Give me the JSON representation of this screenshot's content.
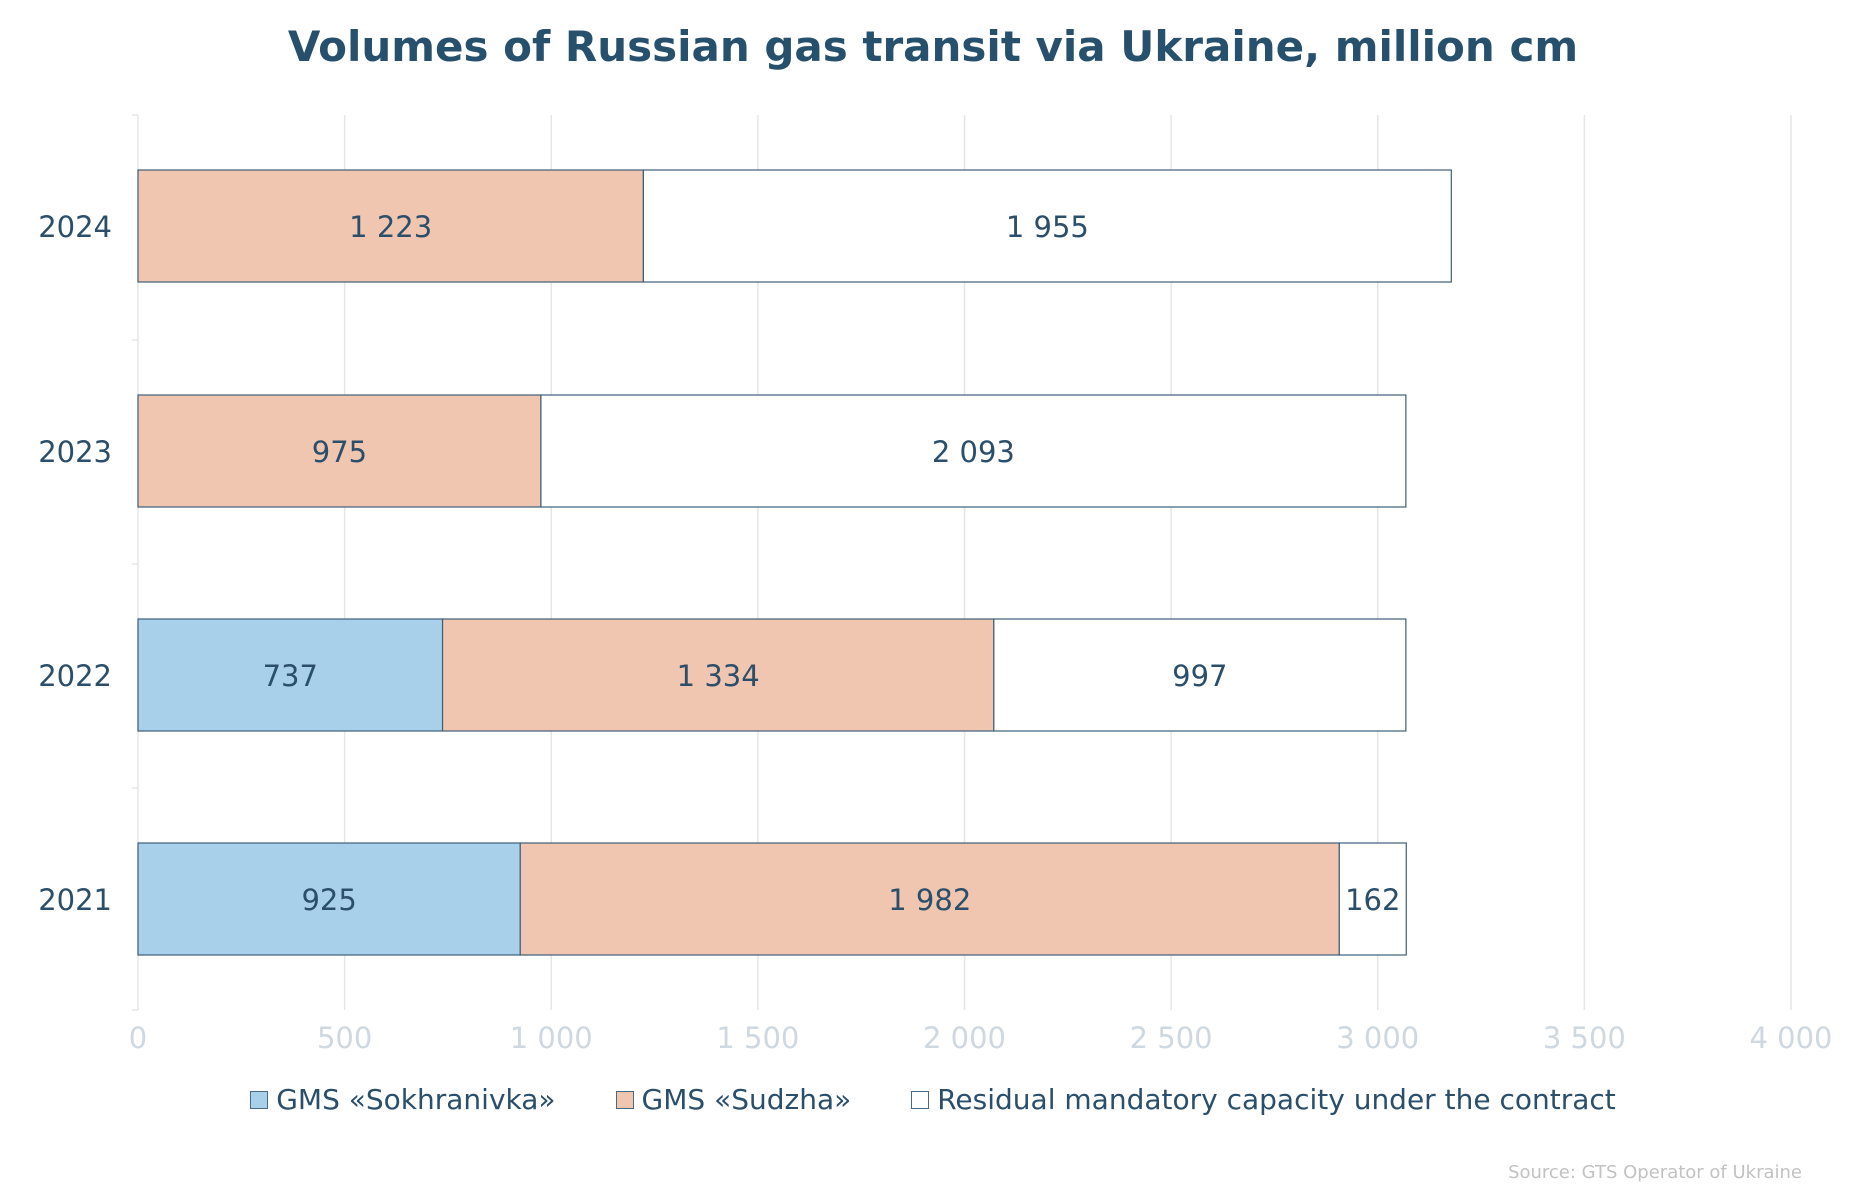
{
  "chart_data": {
    "type": "bar",
    "orientation": "horizontal",
    "stacked": true,
    "title": "Volumes of Russian gas transit via Ukraine, million cm",
    "categories": [
      "2024",
      "2023",
      "2022",
      "2021"
    ],
    "series": [
      {
        "name": "GMS «Sokhranivka»",
        "color": "#a9d0ea",
        "values": [
          0,
          0,
          737,
          925
        ],
        "labels": [
          "",
          "",
          "737",
          "925"
        ]
      },
      {
        "name": "GMS «Sudzha»",
        "color": "#f1c6b0",
        "values": [
          1223,
          975,
          1334,
          1982
        ],
        "labels": [
          "1 223",
          "975",
          "1 334",
          "1 982"
        ]
      },
      {
        "name": "Residual mandatory capacity under the contract",
        "color": "#ffffff",
        "values": [
          1955,
          2093,
          997,
          162
        ],
        "labels": [
          "1 955",
          "2 093",
          "997",
          "162"
        ]
      }
    ],
    "xlim": [
      0,
      4000
    ],
    "xticks": [
      0,
      500,
      1000,
      1500,
      2000,
      2500,
      3000,
      3500,
      4000
    ],
    "xtick_labels": [
      "0",
      "500",
      "1 000",
      "1 500",
      "2 000",
      "2 500",
      "3 000",
      "3 500",
      "4 000"
    ],
    "grid": true,
    "legend_position": "bottom",
    "source": "Source: GTS Operator of Ukraine"
  }
}
